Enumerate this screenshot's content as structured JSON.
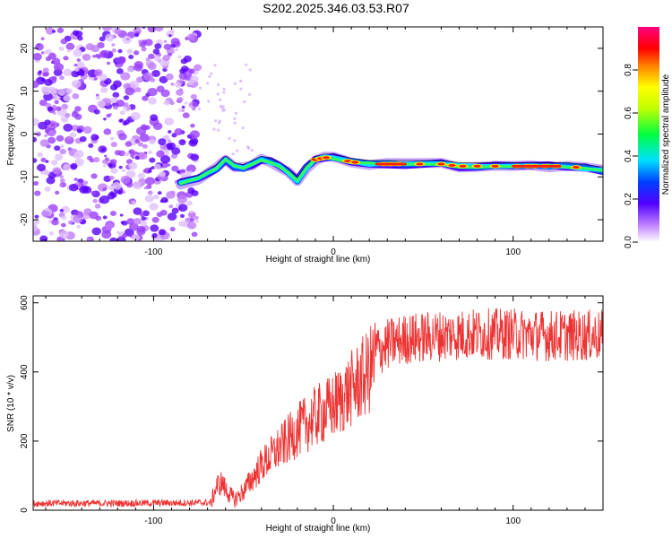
{
  "title": "S202.2025.346.03.53.R07",
  "colors": {
    "trace": "#ee3333",
    "axis": "#000000"
  },
  "chart_data": [
    {
      "type": "heatmap",
      "xlabel": "Height of straight line (km)",
      "ylabel": "Frequency (Hz)",
      "xlim": [
        -167,
        150
      ],
      "ylim": [
        -25,
        25
      ],
      "xticks": [
        -100,
        0,
        100
      ],
      "yticks": [
        -20,
        -10,
        0,
        10,
        20
      ],
      "colorbar": {
        "label": "Normalized spectral amplitude",
        "range": [
          0,
          1
        ],
        "ticks": [
          "0.0",
          "0.2",
          "0.4",
          "0.6",
          "0.8"
        ],
        "tick_values": [
          0,
          0.2,
          0.4,
          0.6,
          0.8
        ]
      },
      "noise_region_km": [
        -167,
        -75
      ],
      "ridge": {
        "x": [
          -85,
          -75,
          -70,
          -65,
          -60,
          -55,
          -50,
          -45,
          -40,
          -35,
          -30,
          -25,
          -20,
          -15,
          -10,
          -5,
          0,
          10,
          20,
          30,
          40,
          50,
          60,
          70,
          80,
          90,
          100,
          110,
          120,
          130,
          140,
          150
        ],
        "freq_hz": [
          -11.5,
          -10.5,
          -9,
          -8,
          -6,
          -7.5,
          -8,
          -7,
          -6,
          -6.5,
          -7.5,
          -9,
          -11,
          -8,
          -6,
          -5.5,
          -5.5,
          -6.5,
          -7,
          -7,
          -7,
          -7,
          -7,
          -7.5,
          -7.5,
          -7.5,
          -7.5,
          -7.5,
          -7.5,
          -7.5,
          -8,
          -8.5
        ]
      }
    },
    {
      "type": "line",
      "xlabel": "Height of straight line (km)",
      "ylabel": "SNR (10 * v/v)",
      "xlim": [
        -167,
        150
      ],
      "ylim": [
        0,
        620
      ],
      "xticks": [
        -100,
        0,
        100
      ],
      "yticks": [
        0,
        200,
        400,
        600
      ],
      "trend": {
        "x": [
          -167,
          -120,
          -68,
          -65,
          -62,
          -60,
          -55,
          -50,
          -40,
          -30,
          -20,
          -10,
          0,
          10,
          20,
          25,
          30,
          40,
          60,
          80,
          100,
          120,
          150
        ],
        "snr": [
          20,
          20,
          22,
          70,
          80,
          60,
          30,
          55,
          130,
          180,
          230,
          270,
          300,
          350,
          400,
          460,
          480,
          495,
          505,
          510,
          510,
          505,
          505
        ]
      }
    }
  ]
}
